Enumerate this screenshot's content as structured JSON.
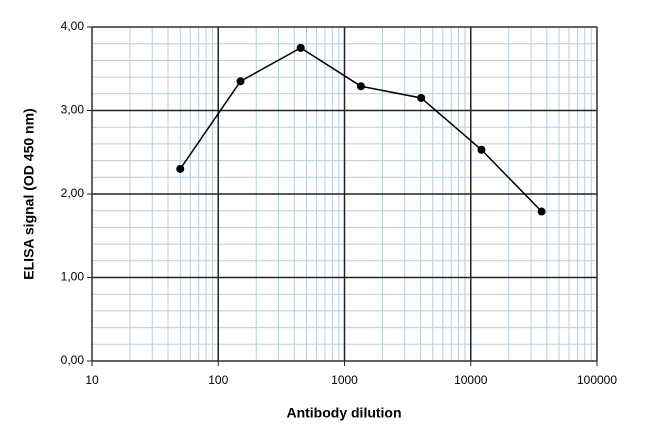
{
  "chart_data": {
    "type": "line",
    "x_label": "Antibody dilution",
    "y_label": "ELISA signal (OD 450 nm)",
    "x": [
      50,
      150,
      450,
      1350,
      4050,
      12150,
      36450
    ],
    "series": [
      {
        "color": "#000000",
        "values": [
          2.3,
          3.35,
          3.75,
          3.29,
          3.15,
          2.53,
          1.79
        ]
      }
    ],
    "xlim": [
      10,
      100000
    ],
    "xticks": [
      10,
      100,
      1000,
      10000,
      100000
    ],
    "xscale": "log",
    "ylim": [
      0,
      4
    ],
    "yticks": [
      {
        "value": 0,
        "label": "0,00"
      },
      {
        "value": 1,
        "label": "1,00"
      },
      {
        "value": 2,
        "label": "2,00"
      },
      {
        "value": 3,
        "label": "3,00"
      },
      {
        "value": 4,
        "label": "4,00"
      }
    ],
    "grid": true,
    "minor_grid": true
  }
}
